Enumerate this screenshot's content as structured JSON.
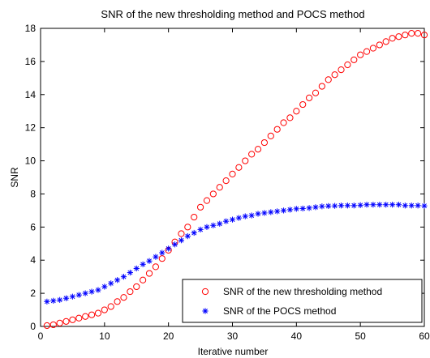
{
  "chart_data": {
    "type": "scatter",
    "title": "SNR of the new thresholding method and POCS method",
    "xlabel": "Iterative number",
    "ylabel": "SNR",
    "xlim": [
      0,
      60
    ],
    "ylim": [
      0,
      18
    ],
    "xticks": [
      "0",
      "10",
      "20",
      "30",
      "40",
      "50",
      "60"
    ],
    "yticks": [
      "0",
      "2",
      "4",
      "6",
      "8",
      "10",
      "12",
      "14",
      "16",
      "18"
    ],
    "grid": false,
    "legend_position": "bottom-right",
    "x": [
      1,
      2,
      3,
      4,
      5,
      6,
      7,
      8,
      9,
      10,
      11,
      12,
      13,
      14,
      15,
      16,
      17,
      18,
      19,
      20,
      21,
      22,
      23,
      24,
      25,
      26,
      27,
      28,
      29,
      30,
      31,
      32,
      33,
      34,
      35,
      36,
      37,
      38,
      39,
      40,
      41,
      42,
      43,
      44,
      45,
      46,
      47,
      48,
      49,
      50,
      51,
      52,
      53,
      54,
      55,
      56,
      57,
      58,
      59,
      60
    ],
    "series": [
      {
        "name": "SNR of the new thresholding method",
        "color": "#ff0000",
        "marker": "circle",
        "values": [
          0.05,
          0.1,
          0.2,
          0.3,
          0.4,
          0.5,
          0.6,
          0.7,
          0.8,
          1.0,
          1.2,
          1.5,
          1.75,
          2.1,
          2.4,
          2.8,
          3.2,
          3.6,
          4.1,
          4.6,
          5.1,
          5.6,
          6.0,
          6.6,
          7.2,
          7.6,
          8.0,
          8.4,
          8.8,
          9.2,
          9.6,
          10.0,
          10.4,
          10.7,
          11.1,
          11.5,
          11.9,
          12.3,
          12.6,
          13.0,
          13.4,
          13.8,
          14.1,
          14.5,
          14.9,
          15.2,
          15.5,
          15.8,
          16.1,
          16.4,
          16.6,
          16.8,
          17.0,
          17.2,
          17.4,
          17.5,
          17.6,
          17.7,
          17.7,
          17.6
        ]
      },
      {
        "name": "SNR of the POCS method",
        "color": "#0000ff",
        "marker": "asterisk",
        "values": [
          1.5,
          1.55,
          1.6,
          1.7,
          1.8,
          1.9,
          2.0,
          2.1,
          2.2,
          2.4,
          2.6,
          2.8,
          3.0,
          3.25,
          3.5,
          3.75,
          3.95,
          4.2,
          4.45,
          4.7,
          4.95,
          5.2,
          5.45,
          5.65,
          5.85,
          6.0,
          6.1,
          6.2,
          6.35,
          6.45,
          6.55,
          6.65,
          6.7,
          6.8,
          6.85,
          6.9,
          6.95,
          7.0,
          7.05,
          7.1,
          7.12,
          7.15,
          7.2,
          7.25,
          7.27,
          7.28,
          7.3,
          7.3,
          7.3,
          7.32,
          7.35,
          7.35,
          7.35,
          7.35,
          7.35,
          7.35,
          7.3,
          7.3,
          7.3,
          7.28
        ]
      }
    ]
  }
}
